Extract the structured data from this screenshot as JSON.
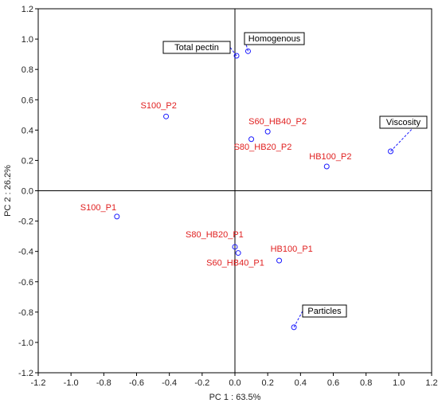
{
  "chart_data": {
    "type": "scatter",
    "xlabel": "PC 1 : 63.5%",
    "ylabel": "PC 2 : 26.2%",
    "xlim": [
      -1.2,
      1.2
    ],
    "ylim": [
      -1.2,
      1.2
    ],
    "xticks": [
      "-1.2",
      "-1.0",
      "-0.8",
      "-0.6",
      "-0.4",
      "-0.2",
      "0.0",
      "0.2",
      "0.4",
      "0.6",
      "0.8",
      "1.0",
      "1.2"
    ],
    "yticks": [
      "1.2",
      "1.0",
      "0.8",
      "0.6",
      "0.4",
      "0.2",
      "0.0",
      "-0.2",
      "-0.4",
      "-0.6",
      "-0.8",
      "-1.0",
      "-1.2"
    ],
    "grid": false,
    "marker_color": "#1a1aff",
    "observation_label_color": "#e02020",
    "observations": [
      {
        "label": "S100_P2",
        "x": -0.42,
        "y": 0.49
      },
      {
        "label": "S60_HB40_P2",
        "x": 0.2,
        "y": 0.39
      },
      {
        "label": "S80_HB20_P2",
        "x": 0.1,
        "y": 0.34
      },
      {
        "label": "HB100_P2",
        "x": 0.56,
        "y": 0.16
      },
      {
        "label": "S100_P1",
        "x": -0.72,
        "y": -0.17
      },
      {
        "label": "S80_HB20_P1",
        "x": 0.0,
        "y": -0.37
      },
      {
        "label": "S60_HB40_P1",
        "x": 0.02,
        "y": -0.41
      },
      {
        "label": "HB100_P1",
        "x": 0.27,
        "y": -0.46
      }
    ],
    "variables": [
      {
        "label": "Total pectin",
        "x": 0.01,
        "y": 0.89
      },
      {
        "label": "Homogenous",
        "x": 0.08,
        "y": 0.92
      },
      {
        "label": "Viscosity",
        "x": 0.95,
        "y": 0.26
      },
      {
        "label": "Particles",
        "x": 0.36,
        "y": -0.9
      }
    ]
  }
}
